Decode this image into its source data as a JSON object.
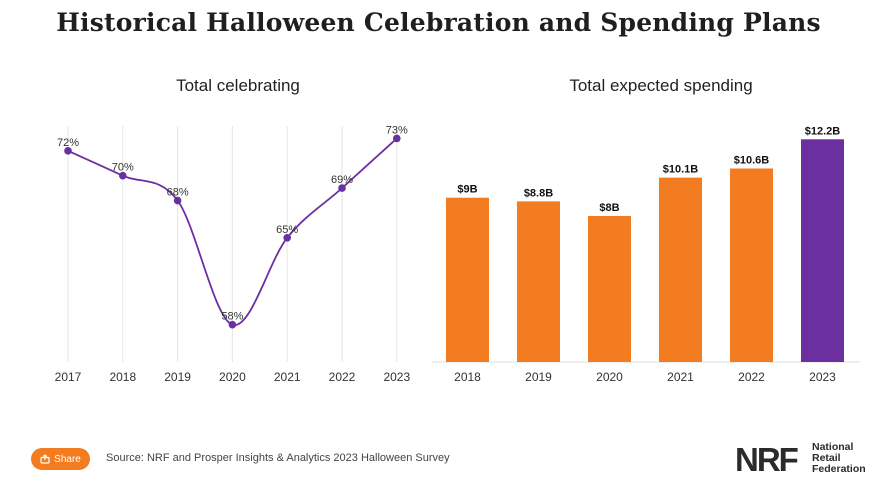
{
  "title": "Historical Halloween Celebration and Spending Plans",
  "chart_data": [
    {
      "type": "line",
      "title": "Total celebrating",
      "x": [
        "2017",
        "2018",
        "2019",
        "2020",
        "2021",
        "2022",
        "2023"
      ],
      "values": [
        72,
        70,
        68,
        58,
        65,
        69,
        73
      ],
      "labels": [
        "72%",
        "70%",
        "68%",
        "58%",
        "65%",
        "69%",
        "73%"
      ],
      "ylim": [
        55,
        74
      ],
      "grid": "vertical",
      "color": "#6b2fa0"
    },
    {
      "type": "bar",
      "title": "Total expected spending",
      "categories": [
        "2018",
        "2019",
        "2020",
        "2021",
        "2022",
        "2023"
      ],
      "values": [
        9.0,
        8.8,
        8.0,
        10.1,
        10.6,
        12.2
      ],
      "labels": [
        "$9B",
        "$8.8B",
        "$8B",
        "$10.1B",
        "$10.6B",
        "$12.2B"
      ],
      "ylim": [
        0,
        12.6
      ],
      "colors": [
        "#f47c20",
        "#f47c20",
        "#f47c20",
        "#f47c20",
        "#f47c20",
        "#6b2fa0"
      ]
    }
  ],
  "footer": {
    "share_label": "Share",
    "share_icon": "share-icon",
    "source": "Source: NRF and Prosper Insights & Analytics 2023 Halloween Survey",
    "logo_mark": "NRF",
    "logo_text": [
      "National",
      "Retail",
      "Federation"
    ]
  }
}
